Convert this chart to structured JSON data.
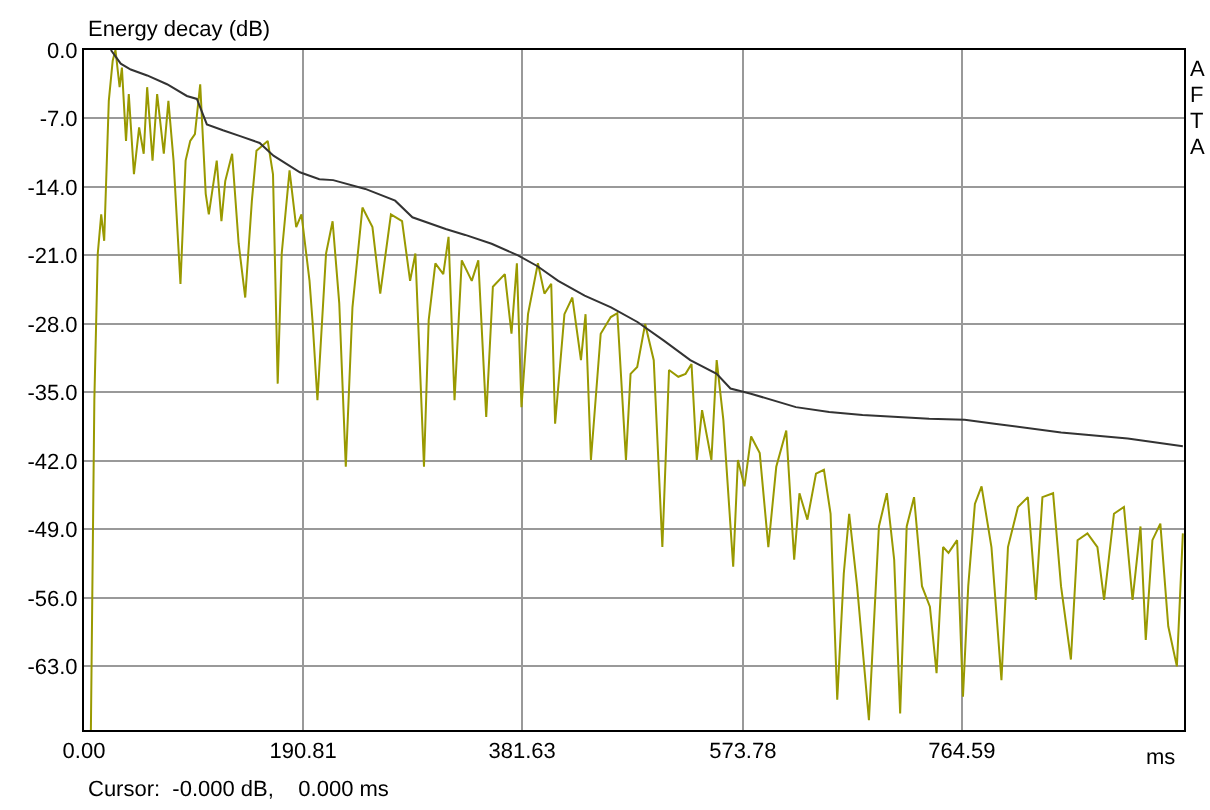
{
  "chart_data": {
    "type": "line",
    "title": "Energy decay (dB)",
    "xlabel": "ms",
    "xlim": [
      0,
      958
    ],
    "xticks": [
      {
        "value": 0,
        "label": "0.00"
      },
      190.81,
      381.63,
      573.78,
      764.59
    ],
    "ylim": [
      -69.5,
      0
    ],
    "yticks": [
      {
        "value": 0,
        "label": "0.0"
      },
      {
        "value": -7,
        "label": "-7.0"
      },
      {
        "value": -14,
        "label": "-14.0"
      },
      {
        "value": -21,
        "label": "-21.0"
      },
      {
        "value": -28,
        "label": "-28.0"
      },
      {
        "value": -35,
        "label": "-35.0"
      },
      {
        "value": -42,
        "label": "-42.0"
      },
      {
        "value": -49,
        "label": "-49.0"
      },
      {
        "value": -56,
        "label": "-56.0"
      },
      {
        "value": -63,
        "label": "-63.0"
      }
    ],
    "grid": true,
    "marker": "none",
    "line_style": "solid",
    "annotations": [
      "A",
      "F",
      "T",
      "A",
      "Cursor:  -0.000 dB,    0.000 ms"
    ],
    "series": [
      {
        "color": "#999900",
        "x": [
          6,
          9,
          12,
          15,
          17.6,
          21.6,
          25,
          27.4,
          31,
          33,
          36.6,
          39,
          43.5,
          48,
          52,
          55,
          59.7,
          63.7,
          69.5,
          73.5,
          78,
          84,
          88.5,
          92.5,
          96.6,
          101.2,
          106,
          108.7,
          115.6,
          119.7,
          123,
          129,
          134.7,
          140.4,
          146.2,
          150.2,
          160,
          164.6,
          168.7,
          172.2,
          179,
          184.8,
          189.4,
          196.4,
          199.2,
          203.3,
          210.8,
          216.5,
          222.3,
          228,
          233.8,
          242.5,
          251.2,
          258,
          267.3,
          277,
          284,
          288.6,
          296.1,
          300.2,
          306,
          312.9,
          317.5,
          322.7,
          329,
          337.7,
          343.4,
          350.3,
          356.1,
          366.5,
          372.3,
          377,
          381,
          386.7,
          395.3,
          401,
          406.9,
          410.3,
          418.4,
          425.3,
          432.8,
          436.8,
          441.5,
          450,
          458.8,
          464.5,
          472,
          476,
          481.8,
          488.7,
          496.2,
          503.7,
          509.5,
          517.6,
          523.9,
          529.1,
          533.7,
          538.3,
          546.4,
          551,
          556.8,
          565.4,
          569.5,
          575.2,
          581,
          588.5,
          596,
          602.9,
          611.6,
          618.5,
          623.1,
          630,
          637.5,
          644.4,
          650.2,
          656,
          661.7,
          666.4,
          673.3,
          683.6,
          692.3,
          699.2,
          705.6,
          710.8,
          716.5,
          722.9,
          729.8,
          736.7,
          742.5,
          748.2,
          752.9,
          760.4,
          765.5,
          770.1,
          775.9,
          781.7,
          790.3,
          799,
          804.7,
          813.4,
          822,
          829,
          834.7,
          844,
          850.9,
          859.5,
          865.3,
          873.9,
          882.6,
          888.4,
          897,
          905.7,
          913.2,
          920.1,
          924.7,
          930.5,
          937.4,
          944.3,
          951.8,
          957
        ],
        "values": [
          -69.5,
          -35.8,
          -20.8,
          -16.8,
          -19.5,
          -5.2,
          -1.1,
          0,
          -3.8,
          -1.8,
          -9.3,
          -4.5,
          -12.7,
          -7.9,
          -10.6,
          -3.8,
          -11.3,
          -4.5,
          -10.6,
          -5.2,
          -11.3,
          -23.9,
          -11.3,
          -9.3,
          -8.6,
          -3.5,
          -14.7,
          -16.8,
          -11.3,
          -17.5,
          -13.4,
          -10.6,
          -19.8,
          -25.3,
          -15.4,
          -10.3,
          -9.3,
          -12.7,
          -34.1,
          -20.8,
          -12.3,
          -18.1,
          -16.8,
          -23.6,
          -28,
          -35.8,
          -20.8,
          -17.5,
          -25.9,
          -42.6,
          -26.3,
          -16.1,
          -18.1,
          -24.9,
          -16.8,
          -17.5,
          -23.6,
          -20.8,
          -42.6,
          -27.6,
          -21.8,
          -22.9,
          -19.1,
          -35.8,
          -21.5,
          -23.6,
          -21.5,
          -37.5,
          -24.2,
          -22.9,
          -29,
          -21.8,
          -36.5,
          -27,
          -21.8,
          -24.9,
          -23.9,
          -38.2,
          -27,
          -25.3,
          -31.7,
          -27,
          -41.9,
          -29,
          -27.3,
          -26.9,
          -41.9,
          -33.1,
          -32.4,
          -28,
          -31.7,
          -50.8,
          -32.7,
          -33.4,
          -33.1,
          -32.1,
          -41.9,
          -36.8,
          -41.9,
          -31.7,
          -37.8,
          -52.8,
          -41.9,
          -44.6,
          -39.5,
          -41.2,
          -50.8,
          -42.6,
          -38.9,
          -52.1,
          -45.3,
          -48,
          -43.3,
          -42.9,
          -47.4,
          -66.4,
          -53.5,
          -47.4,
          -54.8,
          -68.5,
          -48.7,
          -45.3,
          -52.1,
          -67.8,
          -48.7,
          -45.7,
          -54.8,
          -56.9,
          -63.7,
          -50.8,
          -51.4,
          -50.1,
          -66.1,
          -54.8,
          -46.4,
          -44.6,
          -50.8,
          -64.4,
          -50.8,
          -46.7,
          -45.7,
          -56.2,
          -45.7,
          -45.3,
          -54.8,
          -62.3,
          -50.1,
          -49.4,
          -50.8,
          -56.2,
          -47.4,
          -46.7,
          -56.2,
          -48.7,
          -60.3,
          -50.1,
          -48.4,
          -58.9,
          -63,
          -49.4
        ]
      },
      {
        "color": "#333333",
        "x": [
          23.4,
          32,
          40.7,
          55,
          72.3,
          89.6,
          98.3,
          107,
          121,
          136,
          153,
          165,
          188,
          205,
          217,
          245,
          271,
          286,
          315,
          332,
          355,
          378,
          395,
          413,
          436,
          459,
          482,
          505,
          528,
          551,
          563,
          580,
          620,
          649,
          678,
          736,
          767,
          793,
          851,
          909,
          957
        ],
        "values": [
          0,
          -1.4,
          -2,
          -2.6,
          -3.5,
          -4.7,
          -5,
          -7.6,
          -8.2,
          -8.8,
          -9.5,
          -10.8,
          -12.5,
          -13.2,
          -13.3,
          -14.2,
          -15.4,
          -17.1,
          -18.3,
          -18.9,
          -19.8,
          -21,
          -22.1,
          -23.6,
          -25.1,
          -26.3,
          -27.8,
          -29.7,
          -31.7,
          -33.1,
          -34.6,
          -35.1,
          -36.5,
          -37,
          -37.3,
          -37.7,
          -37.8,
          -38.2,
          -39.1,
          -39.7,
          -40.5
        ]
      }
    ]
  }
}
